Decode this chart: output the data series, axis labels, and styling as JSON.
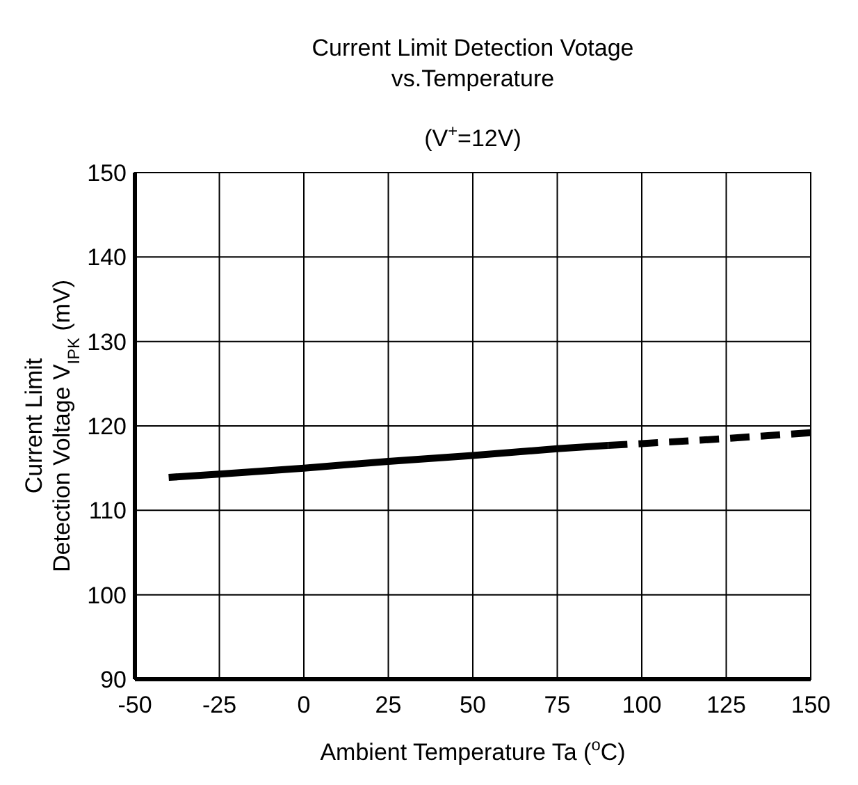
{
  "chart_data": {
    "type": "line",
    "title": "Current Limit Detection Votage\nvs.Temperature",
    "subtitle": "(V$^{+}$=12V)",
    "xlabel": "Ambient Temperature  Ta  ($^{o}$C)",
    "ylabel": "Current Limit\nDetection Voltage V$_{IPK}$  (mV)",
    "series": [
      {
        "color": "#000000",
        "line_style": "solid",
        "x": [
          -40,
          -25,
          0,
          25,
          50,
          75,
          90
        ],
        "values": [
          113.9,
          114.3,
          115.0,
          115.8,
          116.5,
          117.3,
          117.7
        ]
      },
      {
        "color": "#000000",
        "line_style": "dashed",
        "x": [
          90,
          100,
          125,
          150
        ],
        "values": [
          117.7,
          117.9,
          118.5,
          119.2
        ]
      }
    ],
    "xlim": [
      -50,
      150
    ],
    "xticks": [
      -50,
      -25,
      0,
      25,
      50,
      75,
      100,
      125,
      150
    ],
    "ylim": [
      90,
      150
    ],
    "yticks": [
      90,
      100,
      110,
      120,
      130,
      140,
      150
    ],
    "grid": true,
    "marker": "none"
  }
}
